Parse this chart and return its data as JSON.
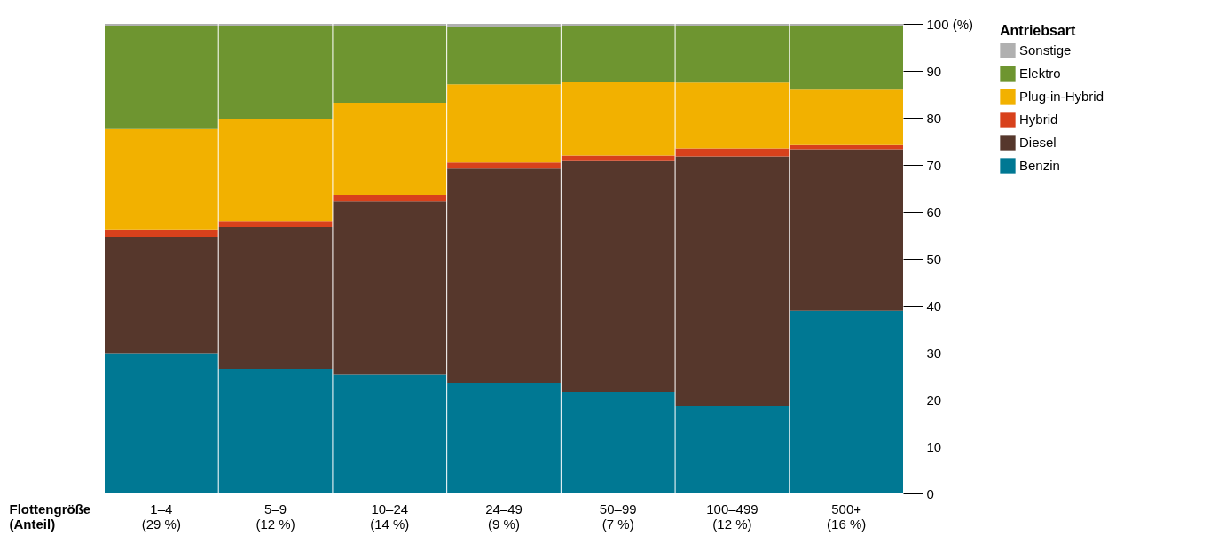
{
  "chart_data": {
    "type": "bar",
    "stacked": true,
    "xlabel": "Flottengröße\n(Anteil)",
    "legend_title": "Antriebsart",
    "legend": "right",
    "grid": false,
    "categories": [
      "1–4\n(29 %)",
      "5–9\n(12 %)",
      "10–24\n(14 %)",
      "24–49\n(9 %)",
      "50–99\n(7 %)",
      "100–499\n(12 %)",
      "500+\n(16 %)"
    ],
    "ylim": [
      0,
      100
    ],
    "yticks": [
      0,
      10,
      20,
      30,
      40,
      50,
      60,
      70,
      80,
      90,
      {
        "value": 100,
        "label": "100 (%)"
      }
    ],
    "series": [
      {
        "name": "Benzin",
        "color": "#007893",
        "values": [
          29.7,
          26.5,
          25.4,
          23.6,
          21.7,
          18.7,
          38.9
        ]
      },
      {
        "name": "Diesel",
        "color": "#56372c",
        "values": [
          24.9,
          30.3,
          36.8,
          45.6,
          49.1,
          53.1,
          34.4
        ]
      },
      {
        "name": "Hybrid",
        "color": "#d8411c",
        "values": [
          1.5,
          1.1,
          1.4,
          1.3,
          1.2,
          1.7,
          0.9
        ]
      },
      {
        "name": "Plug-in-Hybrid",
        "color": "#f2b100",
        "values": [
          21.5,
          21.9,
          19.6,
          16.6,
          15.7,
          14.0,
          11.8
        ]
      },
      {
        "name": "Elektro",
        "color": "#6e9530",
        "values": [
          22.0,
          19.8,
          16.4,
          12.3,
          11.9,
          12.1,
          13.6
        ]
      },
      {
        "name": "Sonstige",
        "color": "#b0b0b0",
        "values": [
          0.4,
          0.4,
          0.4,
          0.6,
          0.4,
          0.4,
          0.4
        ]
      }
    ]
  }
}
